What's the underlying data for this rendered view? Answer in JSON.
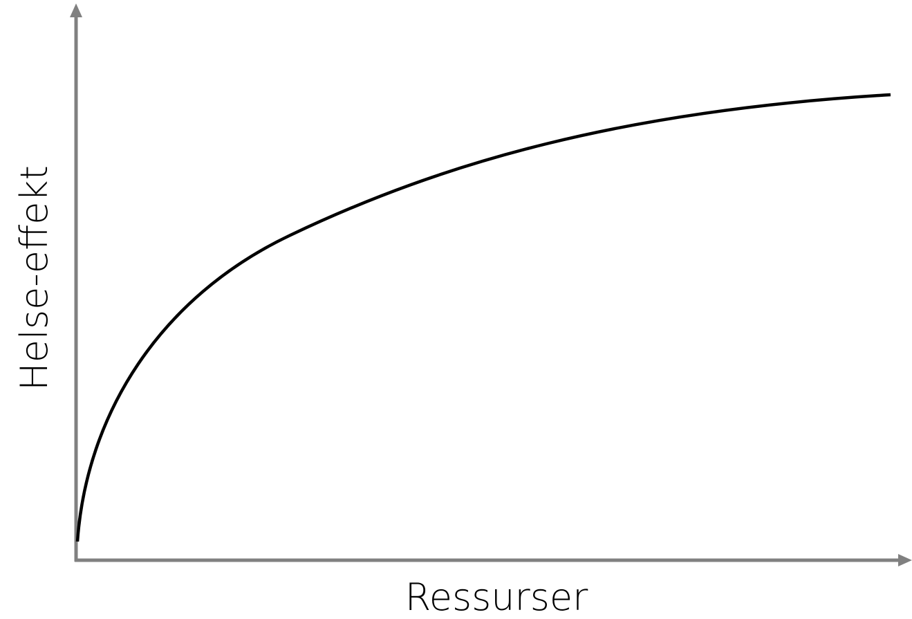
{
  "diagram": {
    "y_axis_label": "Helse-effekt",
    "x_axis_label": "Ressurser"
  }
}
